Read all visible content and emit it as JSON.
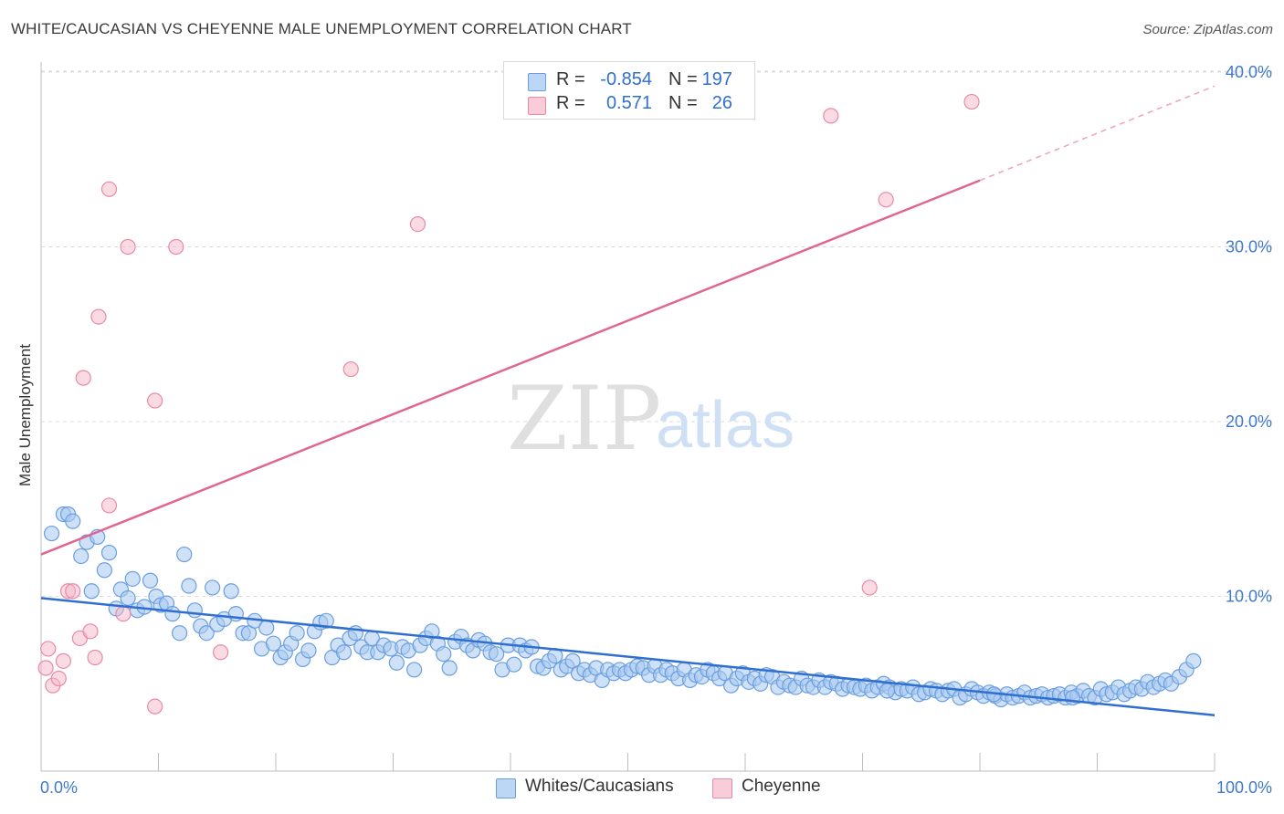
{
  "header": {
    "title": "WHITE/CAUCASIAN VS CHEYENNE MALE UNEMPLOYMENT CORRELATION CHART",
    "source": "Source: ZipAtlas.com"
  },
  "watermark": {
    "zip": "ZIP",
    "atlas": "atlas"
  },
  "legend": {
    "rows": [
      {
        "r_label": "R =",
        "r_value": "-0.854",
        "n_label": "N =",
        "n_value": "197",
        "color": "#a8c8f0"
      },
      {
        "r_label": "R =",
        "r_value": "0.571",
        "n_label": "N =",
        "n_value": "26",
        "color": "#f5b8ca"
      }
    ]
  },
  "bottom_legend": {
    "series1": "Whites/Caucasians",
    "series2": "Cheyenne"
  },
  "colors": {
    "blue_fill": "#a8c8f0",
    "blue_stroke": "#6a9ee0",
    "blue_line": "#2f6fcf",
    "pink_fill": "#f5b8ca",
    "pink_stroke": "#e88aa6",
    "pink_line": "#e0668e",
    "tick_label": "#3f78cc"
  },
  "chart_data": {
    "type": "scatter",
    "title": "WHITE/CAUCASIAN VS CHEYENNE MALE UNEMPLOYMENT CORRELATION CHART",
    "xlabel": "",
    "ylabel": "Male Unemployment",
    "xlim": [
      0,
      100
    ],
    "ylim": [
      0,
      42
    ],
    "x_tick_labels": [
      "0.0%",
      "100.0%"
    ],
    "y_ticks": [
      10,
      20,
      30,
      40
    ],
    "y_tick_labels": [
      "10.0%",
      "20.0%",
      "30.0%",
      "40.0%"
    ],
    "grid": true,
    "legend_position": "top-center",
    "series": [
      {
        "name": "Whites/Caucasians",
        "R": -0.854,
        "N": 197,
        "trend": {
          "x": [
            0,
            100
          ],
          "y": [
            9.9,
            3.2
          ],
          "style": "solid"
        },
        "points": [
          [
            0.9,
            13.6
          ],
          [
            1.9,
            14.7
          ],
          [
            2.3,
            14.7
          ],
          [
            2.7,
            14.3
          ],
          [
            3.4,
            12.3
          ],
          [
            3.9,
            13.1
          ],
          [
            4.3,
            10.3
          ],
          [
            4.8,
            13.4
          ],
          [
            5.4,
            11.5
          ],
          [
            5.8,
            12.5
          ],
          [
            6.4,
            9.3
          ],
          [
            6.8,
            10.4
          ],
          [
            7.4,
            9.9
          ],
          [
            7.8,
            11.0
          ],
          [
            8.2,
            9.2
          ],
          [
            8.8,
            9.4
          ],
          [
            9.3,
            10.9
          ],
          [
            9.8,
            10.0
          ],
          [
            10.2,
            9.5
          ],
          [
            10.7,
            9.6
          ],
          [
            11.2,
            9.0
          ],
          [
            11.8,
            7.9
          ],
          [
            12.2,
            12.4
          ],
          [
            12.6,
            10.6
          ],
          [
            13.1,
            9.2
          ],
          [
            13.6,
            8.3
          ],
          [
            14.1,
            7.9
          ],
          [
            14.6,
            10.5
          ],
          [
            15.0,
            8.4
          ],
          [
            15.6,
            8.7
          ],
          [
            16.2,
            10.3
          ],
          [
            16.6,
            9.0
          ],
          [
            17.2,
            7.9
          ],
          [
            17.7,
            7.9
          ],
          [
            18.2,
            8.6
          ],
          [
            18.8,
            7.0
          ],
          [
            19.2,
            8.2
          ],
          [
            19.8,
            7.3
          ],
          [
            20.4,
            6.5
          ],
          [
            20.8,
            6.8
          ],
          [
            21.3,
            7.3
          ],
          [
            21.8,
            7.9
          ],
          [
            22.3,
            6.4
          ],
          [
            22.8,
            6.9
          ],
          [
            23.3,
            8.0
          ],
          [
            23.8,
            8.5
          ],
          [
            24.3,
            8.6
          ],
          [
            24.8,
            6.5
          ],
          [
            25.3,
            7.2
          ],
          [
            25.8,
            6.8
          ],
          [
            26.3,
            7.6
          ],
          [
            26.8,
            7.9
          ],
          [
            27.3,
            7.1
          ],
          [
            27.8,
            6.8
          ],
          [
            28.2,
            7.6
          ],
          [
            28.7,
            6.8
          ],
          [
            29.2,
            7.2
          ],
          [
            29.8,
            7.0
          ],
          [
            30.3,
            6.2
          ],
          [
            30.8,
            7.1
          ],
          [
            31.3,
            6.9
          ],
          [
            31.8,
            5.8
          ],
          [
            32.3,
            7.2
          ],
          [
            32.8,
            7.6
          ],
          [
            33.3,
            8.0
          ],
          [
            33.8,
            7.3
          ],
          [
            34.3,
            6.7
          ],
          [
            34.8,
            5.9
          ],
          [
            35.3,
            7.4
          ],
          [
            35.8,
            7.7
          ],
          [
            36.3,
            7.2
          ],
          [
            36.8,
            6.9
          ],
          [
            37.3,
            7.5
          ],
          [
            37.8,
            7.3
          ],
          [
            38.3,
            6.8
          ],
          [
            38.8,
            6.7
          ],
          [
            39.3,
            5.8
          ],
          [
            39.8,
            7.2
          ],
          [
            40.3,
            6.1
          ],
          [
            40.8,
            7.2
          ],
          [
            41.3,
            6.9
          ],
          [
            41.8,
            7.1
          ],
          [
            42.3,
            6.0
          ],
          [
            42.8,
            5.9
          ],
          [
            43.3,
            6.3
          ],
          [
            43.8,
            6.6
          ],
          [
            44.3,
            5.8
          ],
          [
            44.8,
            6.0
          ],
          [
            45.3,
            6.3
          ],
          [
            45.8,
            5.6
          ],
          [
            46.3,
            5.8
          ],
          [
            46.8,
            5.5
          ],
          [
            47.3,
            5.9
          ],
          [
            47.8,
            5.2
          ],
          [
            48.3,
            5.8
          ],
          [
            48.8,
            5.6
          ],
          [
            49.3,
            5.8
          ],
          [
            49.8,
            5.6
          ],
          [
            50.3,
            5.8
          ],
          [
            50.8,
            6.0
          ],
          [
            51.3,
            5.9
          ],
          [
            51.8,
            5.5
          ],
          [
            52.3,
            6.0
          ],
          [
            52.8,
            5.5
          ],
          [
            53.3,
            5.8
          ],
          [
            53.8,
            5.6
          ],
          [
            54.3,
            5.3
          ],
          [
            54.8,
            5.8
          ],
          [
            55.3,
            5.2
          ],
          [
            55.8,
            5.5
          ],
          [
            56.3,
            5.4
          ],
          [
            56.8,
            5.8
          ],
          [
            57.3,
            5.6
          ],
          [
            57.8,
            5.3
          ],
          [
            58.3,
            5.6
          ],
          [
            58.8,
            4.9
          ],
          [
            59.3,
            5.3
          ],
          [
            59.8,
            5.6
          ],
          [
            60.3,
            5.1
          ],
          [
            60.8,
            5.3
          ],
          [
            61.3,
            5.0
          ],
          [
            61.8,
            5.5
          ],
          [
            62.3,
            5.4
          ],
          [
            62.8,
            4.8
          ],
          [
            63.3,
            5.1
          ],
          [
            63.8,
            4.9
          ],
          [
            64.3,
            4.8
          ],
          [
            64.8,
            5.3
          ],
          [
            65.3,
            4.9
          ],
          [
            65.8,
            4.8
          ],
          [
            66.3,
            5.2
          ],
          [
            66.8,
            4.8
          ],
          [
            67.3,
            5.1
          ],
          [
            67.8,
            5.0
          ],
          [
            68.3,
            4.7
          ],
          [
            68.8,
            4.9
          ],
          [
            69.3,
            4.8
          ],
          [
            69.8,
            4.7
          ],
          [
            70.3,
            4.9
          ],
          [
            70.8,
            4.6
          ],
          [
            71.3,
            4.8
          ],
          [
            71.8,
            5.0
          ],
          [
            72.3,
            4.8
          ],
          [
            72.8,
            4.5
          ],
          [
            73.3,
            4.7
          ],
          [
            73.8,
            4.6
          ],
          [
            74.3,
            4.8
          ],
          [
            74.8,
            4.4
          ],
          [
            75.3,
            4.5
          ],
          [
            75.8,
            4.7
          ],
          [
            76.3,
            4.6
          ],
          [
            76.8,
            4.4
          ],
          [
            77.3,
            4.6
          ],
          [
            77.8,
            4.7
          ],
          [
            78.3,
            4.2
          ],
          [
            78.8,
            4.4
          ],
          [
            79.3,
            4.7
          ],
          [
            79.8,
            4.5
          ],
          [
            80.3,
            4.3
          ],
          [
            80.8,
            4.5
          ],
          [
            81.3,
            4.3
          ],
          [
            81.8,
            4.1
          ],
          [
            82.3,
            4.4
          ],
          [
            82.8,
            4.2
          ],
          [
            83.3,
            4.3
          ],
          [
            83.8,
            4.5
          ],
          [
            84.3,
            4.2
          ],
          [
            84.8,
            4.3
          ],
          [
            85.3,
            4.4
          ],
          [
            85.8,
            4.2
          ],
          [
            86.3,
            4.3
          ],
          [
            86.8,
            4.4
          ],
          [
            87.3,
            4.2
          ],
          [
            87.8,
            4.5
          ],
          [
            88.3,
            4.3
          ],
          [
            88.8,
            4.6
          ],
          [
            89.3,
            4.3
          ],
          [
            89.8,
            4.2
          ],
          [
            90.3,
            4.7
          ],
          [
            90.8,
            4.4
          ],
          [
            91.3,
            4.5
          ],
          [
            91.8,
            4.8
          ],
          [
            92.3,
            4.4
          ],
          [
            92.8,
            4.6
          ],
          [
            93.3,
            4.8
          ],
          [
            93.8,
            4.7
          ],
          [
            94.3,
            5.1
          ],
          [
            94.8,
            4.8
          ],
          [
            95.3,
            5.0
          ],
          [
            95.8,
            5.2
          ],
          [
            96.3,
            5.0
          ],
          [
            97.0,
            5.4
          ],
          [
            97.6,
            5.8
          ],
          [
            98.2,
            6.3
          ],
          [
            72.1,
            4.6
          ],
          [
            81.2,
            4.4
          ],
          [
            87.9,
            4.2
          ]
        ]
      },
      {
        "name": "Cheyenne",
        "R": 0.571,
        "N": 26,
        "trend": {
          "x": [
            0,
            80
          ],
          "y": [
            12.4,
            33.8
          ],
          "x_dashed": [
            80,
            100
          ],
          "y_dashed": [
            33.8,
            39.2
          ],
          "style": "solid+dashed"
        },
        "points": [
          [
            0.6,
            7.0
          ],
          [
            1.0,
            4.9
          ],
          [
            1.5,
            5.3
          ],
          [
            1.9,
            6.3
          ],
          [
            2.3,
            10.3
          ],
          [
            2.7,
            10.3
          ],
          [
            3.3,
            7.6
          ],
          [
            3.6,
            22.5
          ],
          [
            4.2,
            8.0
          ],
          [
            4.6,
            6.5
          ],
          [
            4.9,
            26.0
          ],
          [
            5.8,
            33.3
          ],
          [
            5.8,
            15.2
          ],
          [
            7.0,
            9.0
          ],
          [
            7.4,
            30.0
          ],
          [
            9.7,
            21.2
          ],
          [
            9.7,
            3.7
          ],
          [
            11.5,
            30.0
          ],
          [
            15.3,
            6.8
          ],
          [
            26.4,
            23.0
          ],
          [
            32.1,
            31.3
          ],
          [
            67.3,
            37.5
          ],
          [
            70.6,
            10.5
          ],
          [
            72.0,
            32.7
          ],
          [
            79.3,
            38.3
          ],
          [
            0.4,
            5.9
          ]
        ]
      }
    ]
  }
}
